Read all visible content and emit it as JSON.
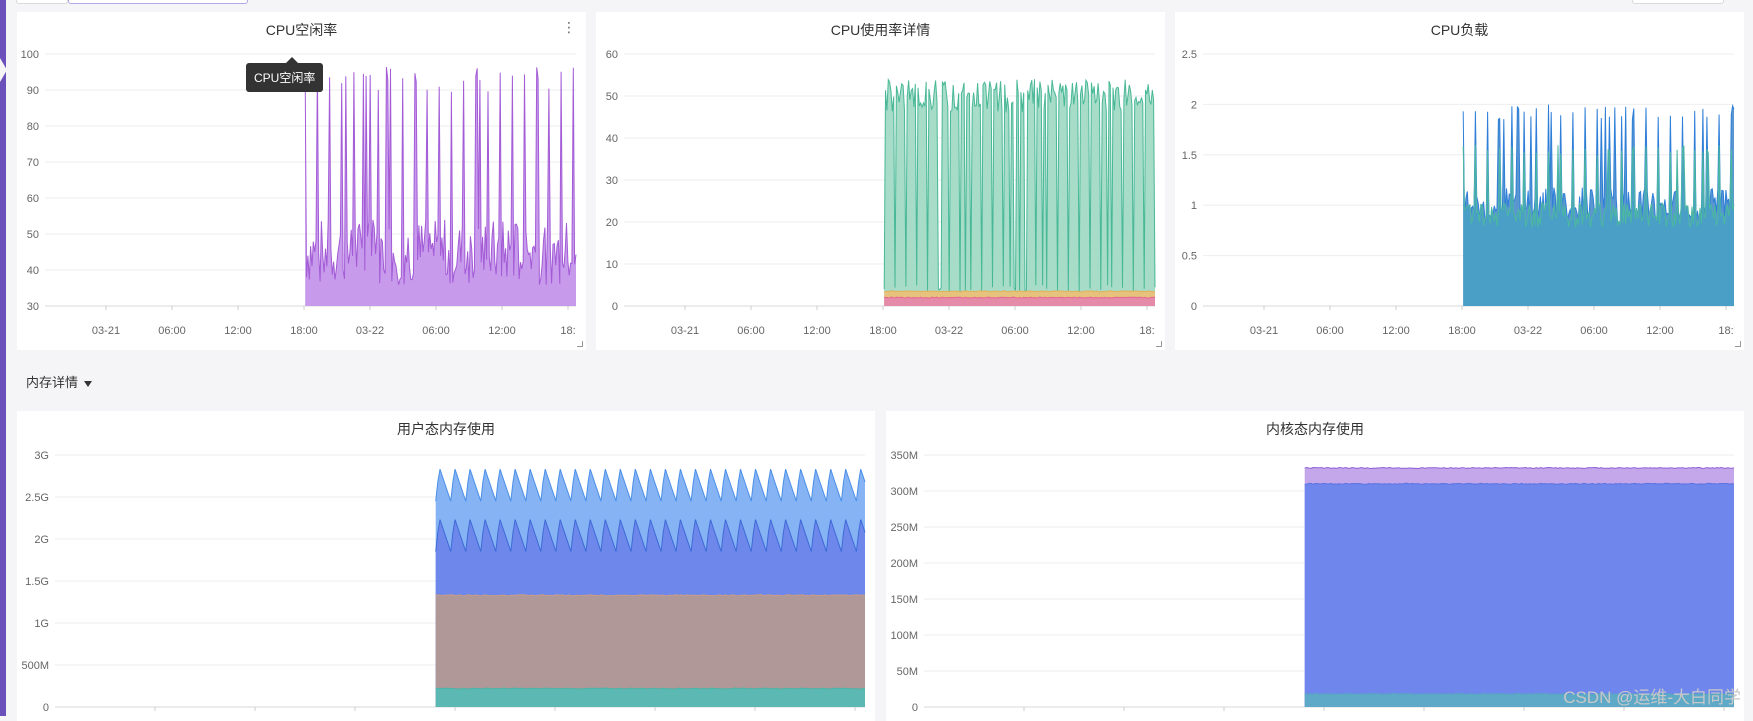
{
  "section": {
    "label": "内存详情"
  },
  "tooltip": {
    "text": "CPU空闲率"
  },
  "watermark": {
    "text": "CSDN @运维-大白同学"
  },
  "panels": [
    {
      "id": "cpu-idle",
      "title": "CPU空闲率"
    },
    {
      "id": "cpu-usage",
      "title": "CPU使用率详情"
    },
    {
      "id": "cpu-load",
      "title": "CPU负载"
    },
    {
      "id": "user-mem",
      "title": "用户态内存使用"
    },
    {
      "id": "kernel-mem",
      "title": "内核态内存使用"
    }
  ],
  "chart_data": [
    {
      "type": "area",
      "id": "cpu-idle",
      "x_tick_labels": [
        "03-21",
        "06:00",
        "12:00",
        "18:00",
        "03-22",
        "06:00",
        "12:00",
        "18:"
      ],
      "y_tick_labels": [
        "30",
        "40",
        "50",
        "60",
        "70",
        "80",
        "90",
        "100"
      ],
      "ylim": [
        30,
        100
      ],
      "series": [
        {
          "color": "#a35bd6",
          "fill": "#c79aec",
          "shape": "spiky",
          "base_level": 45,
          "peak_level": 97,
          "start_fraction": 0.49
        }
      ]
    },
    {
      "type": "area",
      "id": "cpu-usage",
      "x_tick_labels": [
        "03-21",
        "06:00",
        "12:00",
        "18:00",
        "03-22",
        "06:00",
        "12:00",
        "18:"
      ],
      "y_tick_labels": [
        "0",
        "10",
        "20",
        "30",
        "40",
        "50",
        "60"
      ],
      "ylim": [
        0,
        60
      ],
      "series": [
        {
          "color": "#48b896",
          "fill": "#a6dcc8",
          "shape": "spiky-inverted",
          "base_level": 50,
          "dip_level": 3,
          "start_fraction": 0.49
        },
        {
          "color": "#e0b25c",
          "fill": "#e7c27d",
          "shape": "flat",
          "level": 3.5,
          "start_fraction": 0.49
        },
        {
          "color": "#e5678f",
          "fill": "#e58ba9",
          "shape": "flat",
          "level": 2,
          "start_fraction": 0.49
        }
      ]
    },
    {
      "type": "area",
      "id": "cpu-load",
      "x_tick_labels": [
        "03-21",
        "06:00",
        "12:00",
        "18:00",
        "03-22",
        "06:00",
        "12:00",
        "18:"
      ],
      "y_tick_labels": [
        "0",
        "0.5",
        "1",
        "1.5",
        "2",
        "2.5"
      ],
      "ylim": [
        0,
        2.5
      ],
      "series": [
        {
          "color": "#2f7fd8",
          "fill": "#5a97d0",
          "shape": "spiky",
          "base_level": 1.0,
          "peak_level": 2.0,
          "start_fraction": 0.49
        },
        {
          "color": "#4bb8a0",
          "fill": "#4a9fc6",
          "shape": "spiky",
          "base_level": 0.9,
          "peak_level": 1.6,
          "start_fraction": 0.49
        }
      ]
    },
    {
      "type": "area",
      "id": "user-mem",
      "x_tick_labels": [],
      "y_tick_labels": [
        "0",
        "500M",
        "1G",
        "1.5G",
        "2G",
        "2.5G",
        "3G"
      ],
      "ylim": [
        0,
        3
      ],
      "series": [
        {
          "color": "#4a8fe8",
          "fill": "#86b3f3",
          "shape": "sawtooth",
          "low": 2.45,
          "high": 2.85,
          "start_fraction": 0.47
        },
        {
          "color": "#3e6ad8",
          "fill": "#6d88ea",
          "shape": "sawtooth",
          "low": 1.85,
          "high": 2.25,
          "start_fraction": 0.47
        },
        {
          "color": "#c89c86",
          "fill": "#b09898",
          "shape": "flat",
          "level": 1.33,
          "start_fraction": 0.47
        },
        {
          "color": "#4bb3a6",
          "fill": "#5cb8b3",
          "shape": "flat",
          "level": 0.22,
          "start_fraction": 0.47
        }
      ]
    },
    {
      "type": "area",
      "id": "kernel-mem",
      "x_tick_labels": [],
      "y_tick_labels": [
        "0",
        "50M",
        "100M",
        "150M",
        "200M",
        "250M",
        "300M",
        "350M"
      ],
      "ylim": [
        0,
        350
      ],
      "series": [
        {
          "color": "#8f5fd8",
          "fill": "#c4a6ea",
          "shape": "flat",
          "level": 332,
          "start_fraction": 0.47
        },
        {
          "color": "#5a73e0",
          "fill": "#6f86ec",
          "shape": "flat",
          "level": 310,
          "start_fraction": 0.47
        },
        {
          "color": "#55a8c0",
          "fill": "#5fa9c8",
          "shape": "flat",
          "level": 18,
          "start_fraction": 0.47
        }
      ]
    }
  ]
}
